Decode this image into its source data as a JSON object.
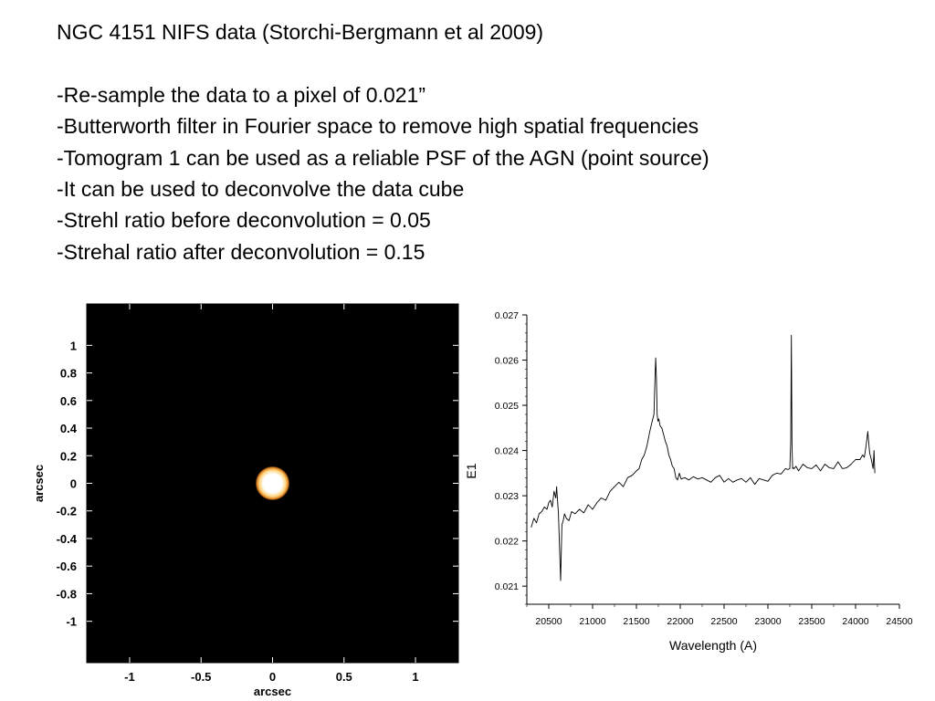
{
  "slide": {
    "title": "NGC 4151 NIFS data  (Storchi-Bergmann et al 2009)",
    "bullets": [
      "-Re-sample the data to a pixel of 0.021”",
      "-Butterworth filter in Fourier space to remove high spatial frequencies",
      "-Tomogram 1  can be used as a reliable PSF of the AGN (point source)",
      "-It can be used to deconvolve the data cube",
      "-Strehl ratio before deconvolution = 0.05",
      "-Strehal ratio after deconvolution = 0.15"
    ]
  },
  "chart_data": [
    {
      "type": "heatmap",
      "title": "",
      "xlabel": "arcsec",
      "ylabel": "arcsec",
      "xlim": [
        -1.3,
        1.3
      ],
      "ylim": [
        -1.3,
        1.3
      ],
      "xticks": [
        -1,
        -0.5,
        0,
        0.5,
        1
      ],
      "xtick_labels": [
        "-1",
        "-0.5",
        "0",
        "0.5",
        "1"
      ],
      "yticks": [
        1,
        0.8,
        0.6,
        0.4,
        0.2,
        0,
        -0.2,
        -0.4,
        -0.6,
        -0.8,
        -1
      ],
      "ytick_labels": [
        "1",
        "0.8",
        "0.6",
        "0.4",
        "0.2",
        "0",
        "-0.2",
        "-0.4",
        "-0.6",
        "-0.8",
        "-1"
      ],
      "background_color": "#000000",
      "source": {
        "x": 0.0,
        "y": 0.0,
        "fwhm_arcsec": 0.12
      },
      "colors": {
        "core": "#ffffff",
        "mid": "#ffd27a",
        "edge": "#d97a1a"
      }
    },
    {
      "type": "line",
      "title": "",
      "xlabel": "Wavelength (A)",
      "ylabel": "E1",
      "xlim": [
        20250,
        24500
      ],
      "ylim": [
        0.0206,
        0.027
      ],
      "xticks": [
        20500,
        21000,
        21500,
        22000,
        22500,
        23000,
        23500,
        24000,
        24500
      ],
      "xtick_labels": [
        "20500",
        "21000",
        "21500",
        "22000",
        "22500",
        "23000",
        "23500",
        "24000",
        "24500"
      ],
      "yticks": [
        0.021,
        0.022,
        0.023,
        0.024,
        0.025,
        0.026,
        0.027
      ],
      "ytick_labels": [
        "0.021",
        "0.022",
        "0.023",
        "0.024",
        "0.025",
        "0.026",
        "0.027"
      ],
      "grid": false,
      "line_color": "#000000",
      "series": [
        {
          "x": [
            20300,
            20330,
            20360,
            20390,
            20420,
            20450,
            20480,
            20500,
            20520,
            20540,
            20560,
            20580,
            20590,
            20610,
            20620,
            20635,
            20650,
            20665,
            20680,
            20700,
            20730,
            20760,
            20800,
            20850,
            20900,
            20950,
            21000,
            21050,
            21100,
            21150,
            21200,
            21250,
            21300,
            21350,
            21400,
            21450,
            21500,
            21530,
            21560,
            21590,
            21620,
            21650,
            21680,
            21700,
            21710,
            21720,
            21728,
            21736,
            21745,
            21755,
            21770,
            21790,
            21810,
            21830,
            21850,
            21870,
            21890,
            21910,
            21930,
            21950,
            21970,
            21990,
            22010,
            22050,
            22100,
            22150,
            22200,
            22250,
            22300,
            22350,
            22400,
            22450,
            22500,
            22550,
            22600,
            22650,
            22700,
            22750,
            22800,
            22850,
            22900,
            22950,
            23000,
            23050,
            23100,
            23150,
            23200,
            23230,
            23250,
            23260,
            23268,
            23275,
            23282,
            23290,
            23300,
            23320,
            23350,
            23400,
            23450,
            23500,
            23550,
            23600,
            23650,
            23700,
            23750,
            23800,
            23850,
            23900,
            23950,
            24000,
            24050,
            24080,
            24100,
            24120,
            24140,
            24160,
            24180,
            24200,
            24210,
            24220
          ],
          "y": [
            0.0223,
            0.0225,
            0.0224,
            0.0226,
            0.02265,
            0.02275,
            0.0227,
            0.02285,
            0.0229,
            0.02275,
            0.0231,
            0.02295,
            0.0232,
            0.0226,
            0.02205,
            0.02112,
            0.02235,
            0.02245,
            0.0226,
            0.0225,
            0.02245,
            0.02265,
            0.0226,
            0.0227,
            0.02262,
            0.0228,
            0.0227,
            0.02285,
            0.02295,
            0.0229,
            0.0231,
            0.0232,
            0.0233,
            0.0232,
            0.0234,
            0.02345,
            0.02355,
            0.0236,
            0.0238,
            0.0239,
            0.0241,
            0.0244,
            0.02465,
            0.0248,
            0.0255,
            0.02605,
            0.0256,
            0.0248,
            0.02465,
            0.0247,
            0.02455,
            0.0245,
            0.02435,
            0.0242,
            0.0241,
            0.0239,
            0.0238,
            0.02365,
            0.0236,
            0.0234,
            0.02335,
            0.0235,
            0.02337,
            0.0234,
            0.02335,
            0.02342,
            0.02337,
            0.0234,
            0.02335,
            0.0233,
            0.0234,
            0.02345,
            0.0233,
            0.02338,
            0.0233,
            0.02335,
            0.02338,
            0.0233,
            0.0234,
            0.02325,
            0.02338,
            0.02335,
            0.02332,
            0.02345,
            0.0235,
            0.02348,
            0.0236,
            0.02358,
            0.0236,
            0.0242,
            0.02655,
            0.0241,
            0.0236,
            0.02362,
            0.0236,
            0.02365,
            0.02355,
            0.0237,
            0.02362,
            0.0236,
            0.02368,
            0.02355,
            0.0237,
            0.02362,
            0.0236,
            0.02375,
            0.0236,
            0.02362,
            0.0237,
            0.0238,
            0.0238,
            0.0239,
            0.02385,
            0.0241,
            0.02442,
            0.02395,
            0.0238,
            0.0236,
            0.024,
            0.0235
          ]
        }
      ]
    }
  ]
}
